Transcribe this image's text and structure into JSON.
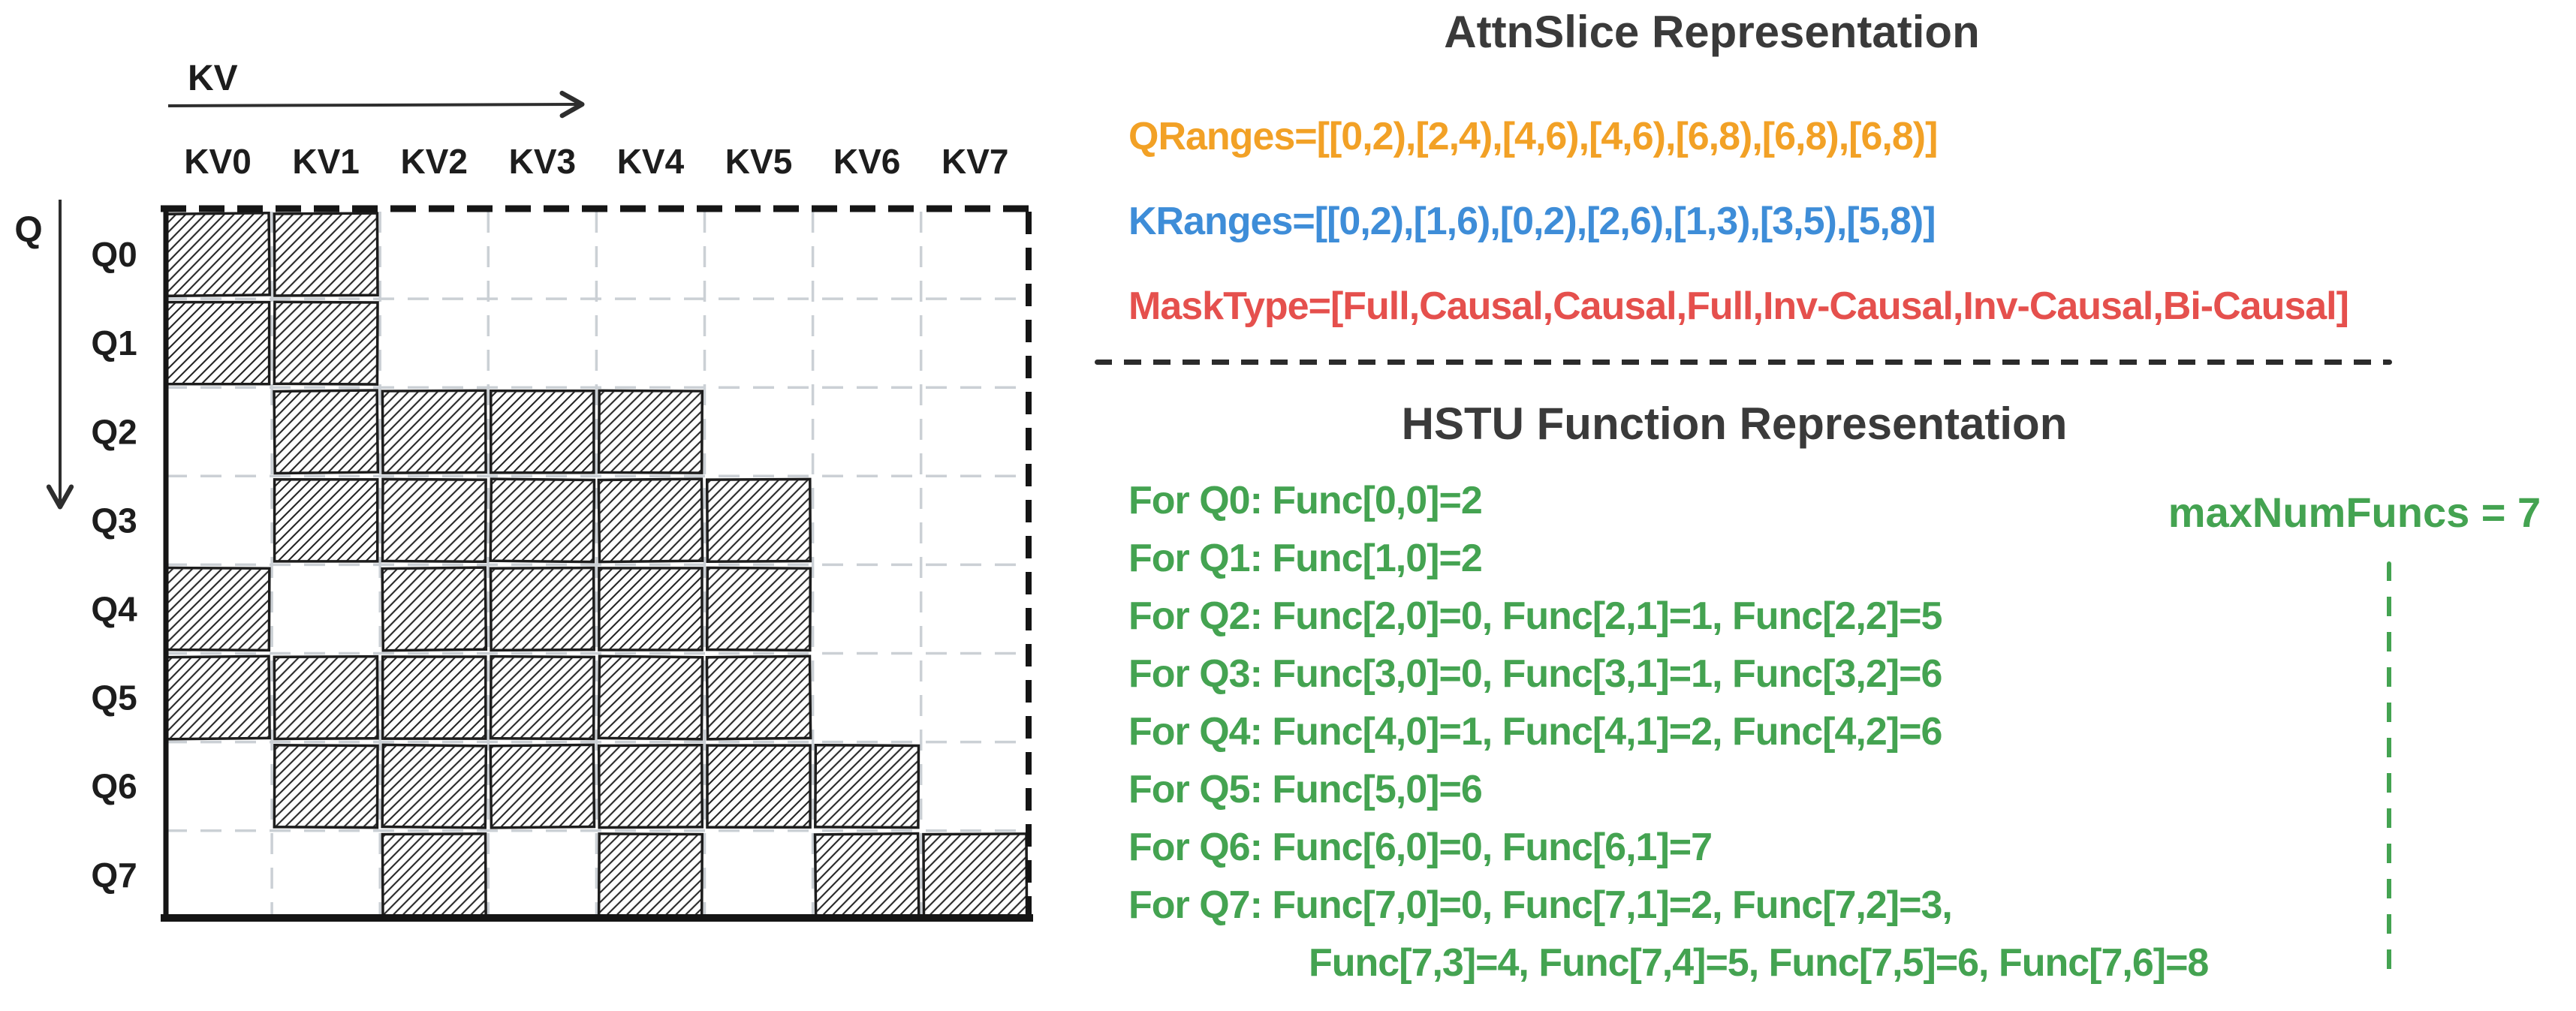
{
  "left_diagram": {
    "kv_axis_label": "KV",
    "q_axis_label": "Q",
    "col_labels": [
      "KV0",
      "KV1",
      "KV2",
      "KV3",
      "KV4",
      "KV5",
      "KV6",
      "KV7"
    ],
    "row_labels": [
      "Q0",
      "Q1",
      "Q2",
      "Q3",
      "Q4",
      "Q5",
      "Q6",
      "Q7"
    ],
    "mask": [
      [
        1,
        1,
        0,
        0,
        0,
        0,
        0,
        0
      ],
      [
        1,
        1,
        0,
        0,
        0,
        0,
        0,
        0
      ],
      [
        0,
        1,
        1,
        1,
        1,
        0,
        0,
        0
      ],
      [
        0,
        1,
        1,
        1,
        1,
        1,
        0,
        0
      ],
      [
        1,
        0,
        1,
        1,
        1,
        1,
        0,
        0
      ],
      [
        1,
        1,
        1,
        1,
        1,
        1,
        0,
        0
      ],
      [
        0,
        1,
        1,
        1,
        1,
        1,
        1,
        0
      ],
      [
        0,
        0,
        1,
        0,
        1,
        0,
        1,
        1
      ]
    ]
  },
  "right_panel": {
    "attnslice": {
      "title": "AttnSlice Representation",
      "qranges": "QRanges=[[0,2),[2,4),[4,6),[4,6),[6,8),[6,8),[6,8)]",
      "kranges": "KRanges=[[0,2),[1,6),[0,2),[2,6),[1,3),[3,5),[5,8)]",
      "masktype": "MaskType=[Full,Causal,Causal,Full,Inv-Causal,Inv-Causal,Bi-Causal]"
    },
    "hstu": {
      "title": "HSTU Function Representation",
      "func_lines": [
        "For Q0: Func[0,0]=2",
        "For Q1: Func[1,0]=2",
        "For Q2: Func[2,0]=0, Func[2,1]=1, Func[2,2]=5",
        "For Q3: Func[3,0]=0, Func[3,1]=1, Func[3,2]=6",
        "For Q4: Func[4,0]=1, Func[4,1]=2, Func[4,2]=6",
        "For Q5: Func[5,0]=6",
        "For Q6: Func[6,0]=0, Func[6,1]=7",
        "For Q7: Func[7,0]=0, Func[7,1]=2, Func[7,2]=3,",
        "Func[7,3]=4, Func[7,4]=5, Func[7,5]=6, Func[7,6]=8"
      ],
      "max_num_funcs": "maxNumFuncs = 7"
    },
    "colors": {
      "qranges": "#F2A126",
      "kranges": "#3E8DD8",
      "masktype": "#E5504D",
      "hstu_green": "#44A351",
      "title_gray": "#3A3A3A",
      "grid_ink": "#1D1D1D"
    }
  }
}
